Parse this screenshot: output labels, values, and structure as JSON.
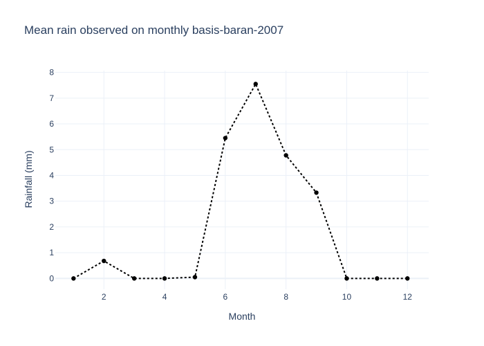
{
  "chart_data": {
    "type": "line",
    "title": "Mean rain observed on monthly basis-baran-2007",
    "xlabel": "Month",
    "ylabel": "Rainfall (mm)",
    "x_ticks": [
      2,
      4,
      6,
      8,
      10,
      12
    ],
    "y_ticks": [
      0,
      1,
      2,
      3,
      4,
      5,
      6,
      7,
      8
    ],
    "xlim": [
      0.4,
      12.7
    ],
    "ylim": [
      -0.42,
      8.07
    ],
    "grid": true,
    "series": [
      {
        "line_style": "dotted",
        "color": "#000000",
        "marker": "circle",
        "x": [
          1,
          2,
          3,
          4,
          5,
          6,
          7,
          8,
          9,
          10,
          11,
          12
        ],
        "y": [
          0,
          0.68,
          0,
          0,
          0.05,
          5.45,
          7.55,
          4.78,
          3.33,
          0,
          0,
          0
        ]
      }
    ]
  }
}
